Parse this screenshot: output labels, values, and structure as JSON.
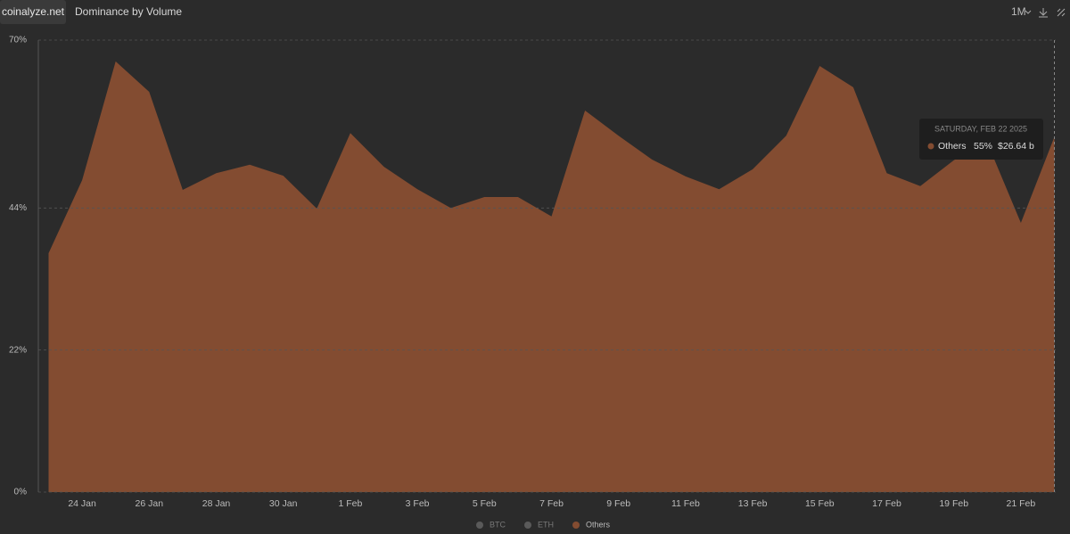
{
  "header": {
    "brand": "coinalyze.net",
    "title": "Dominance by Volume",
    "range": "1M"
  },
  "chart_data": {
    "type": "area",
    "categories": [
      null,
      "24 Jan",
      null,
      "26 Jan",
      null,
      "28 Jan",
      null,
      "30 Jan",
      null,
      "1 Feb",
      null,
      "3 Feb",
      null,
      "5 Feb",
      null,
      "7 Feb",
      null,
      "9 Feb",
      null,
      "11 Feb",
      null,
      "13 Feb",
      null,
      "15 Feb",
      null,
      "17 Feb",
      null,
      "19 Feb",
      null,
      "21 Feb",
      null
    ],
    "series": [
      {
        "name": "Others",
        "color": "#834c31",
        "values": [
          37.0,
          48.3,
          66.7,
          62.0,
          46.8,
          49.4,
          50.7,
          49.0,
          43.9,
          55.6,
          50.4,
          46.9,
          44.0,
          45.7,
          45.7,
          42.7,
          59.1,
          55.2,
          51.5,
          48.9,
          46.9,
          50.0,
          55.2,
          66.0,
          62.7,
          49.4,
          47.4,
          51.4,
          54.1,
          41.7,
          55
        ]
      }
    ],
    "hidden_series": [
      {
        "name": "BTC",
        "color": "#5a5a5a"
      },
      {
        "name": "ETH",
        "color": "#5a5a5a"
      }
    ],
    "ylim": [
      0,
      70
    ],
    "yticks": [
      {
        "value": 0,
        "label": "0%"
      },
      {
        "value": 22,
        "label": "22%"
      },
      {
        "value": 44,
        "label": "44%"
      },
      {
        "value": 70,
        "label": "70%"
      }
    ],
    "grid": true,
    "tooltip": {
      "date": "SATURDAY, FEB 22 2025",
      "series": "Others",
      "value": "55%",
      "volume": "$26.64 b"
    }
  }
}
